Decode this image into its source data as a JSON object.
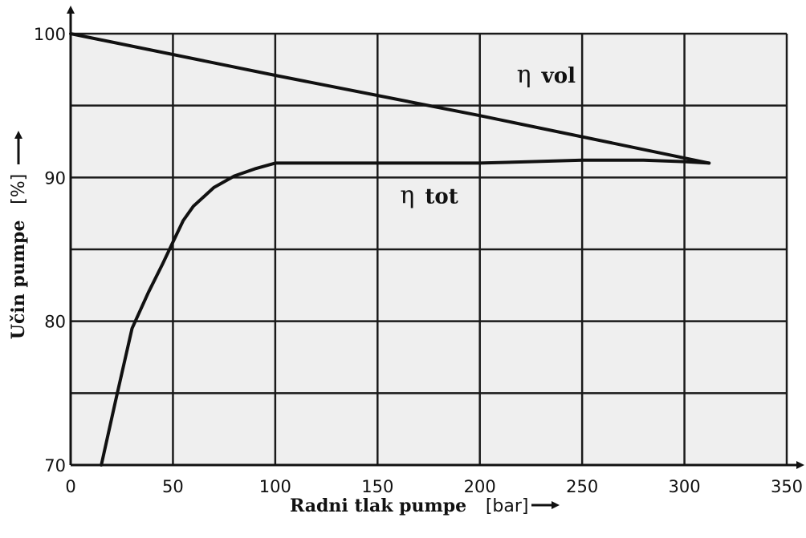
{
  "chart_data": {
    "type": "line",
    "xlabel": "Radni tlak pumpe",
    "xunit": "[bar]",
    "ylabel": "Učin pumpe",
    "yunit": "[%]",
    "xlim": [
      0,
      350
    ],
    "ylim": [
      70,
      100
    ],
    "xticks": [
      "0",
      "50",
      "100",
      "150",
      "200",
      "250",
      "300",
      "350"
    ],
    "yticks": [
      "70",
      "80",
      "90",
      "100"
    ],
    "grid": true,
    "series": [
      {
        "name": "η vol",
        "label_symbol": "η",
        "label_text": "vol",
        "x": [
          0,
          100,
          200,
          312
        ],
        "y": [
          100,
          97.1,
          94.3,
          91.0
        ]
      },
      {
        "name": "η tot",
        "label_symbol": "η",
        "label_text": "tot",
        "x": [
          15,
          22,
          30,
          38,
          45,
          50,
          55,
          60,
          70,
          80,
          90,
          100,
          150,
          200,
          225,
          250,
          280,
          300,
          312
        ],
        "y": [
          70,
          74.5,
          79.5,
          82,
          84,
          85.5,
          87,
          88,
          89.3,
          90.1,
          90.6,
          91,
          91,
          91,
          91.1,
          91.2,
          91.2,
          91.1,
          91.0
        ]
      }
    ],
    "colors": {
      "line": "#111111",
      "plot_bg": "#efefef",
      "grid": "#1a1a1a"
    }
  }
}
